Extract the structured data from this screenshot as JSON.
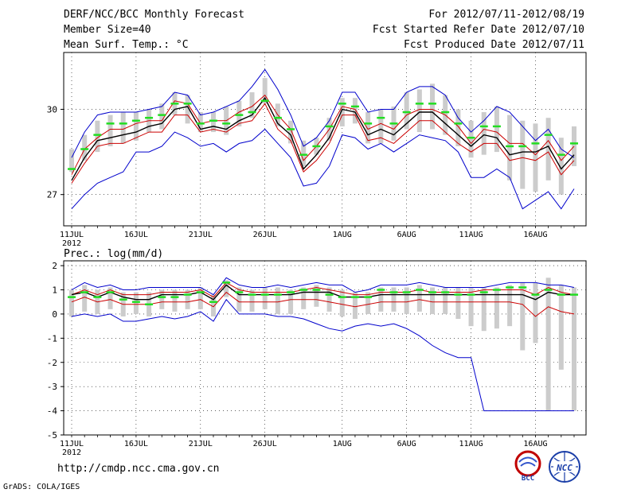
{
  "header": {
    "title": "DERF/NCC/BCC Monthly Forecast",
    "member_size": "Member Size=40",
    "variable": "Mean Surf. Temp.: °C",
    "period": "For 2012/07/11-2012/08/19",
    "start_date": "Fcst Started Refer Date 2012/07/10",
    "produced_date": "Fcst Produced Date 2012/07/11"
  },
  "footer": {
    "url": "http://cmdp.ncc.cma.gov.cn",
    "credit": "GrADS: COLA/IGES",
    "logo_bcc": "BCC",
    "logo_ncc": "NCC"
  },
  "colors": {
    "max_min": "#0000cc",
    "black": "#000000",
    "red": "#cc0000",
    "green": "#22dd22",
    "spread": "#cccccc"
  },
  "chart_data": [
    {
      "type": "line",
      "title": "Mean Surf. Temp.: °C",
      "x_tick_labels": [
        "11JUL",
        "16JUL",
        "21JUL",
        "26JUL",
        "1AUG",
        "6AUG",
        "11AUG",
        "16AUG"
      ],
      "x_tick_index": [
        0,
        5,
        10,
        15,
        21,
        26,
        31,
        36
      ],
      "year_label": "2012",
      "ylim": [
        25.9,
        32.0
      ],
      "yticks": [
        27,
        30
      ],
      "n_days": 40,
      "series": [
        {
          "name": "max",
          "color": "#0000cc",
          "values": [
            28.3,
            29.2,
            29.8,
            29.9,
            29.9,
            29.9,
            30.0,
            30.1,
            30.6,
            30.5,
            29.8,
            29.9,
            30.1,
            30.3,
            30.8,
            31.4,
            30.7,
            29.8,
            28.7,
            29.0,
            29.6,
            30.6,
            30.6,
            29.9,
            30.0,
            30.0,
            30.6,
            30.8,
            30.8,
            30.5,
            29.7,
            29.2,
            29.6,
            30.1,
            29.9,
            29.4,
            28.9,
            29.3,
            28.6,
            28.3
          ]
        },
        {
          "name": "upper",
          "color": "#cc0000",
          "values": [
            27.7,
            28.6,
            29.0,
            29.3,
            29.3,
            29.5,
            29.6,
            29.6,
            30.3,
            30.2,
            29.5,
            29.6,
            29.6,
            29.9,
            30.1,
            30.5,
            29.8,
            29.3,
            28.2,
            28.7,
            29.3,
            30.1,
            30.0,
            29.3,
            29.5,
            29.3,
            29.8,
            30.0,
            30.0,
            29.8,
            29.4,
            28.8,
            29.3,
            29.2,
            28.8,
            28.8,
            28.4,
            28.9,
            28.2,
            28.7
          ]
        },
        {
          "name": "ensemble_mean",
          "color": "#000000",
          "values": [
            27.5,
            28.3,
            28.9,
            29.0,
            29.1,
            29.2,
            29.4,
            29.5,
            30.0,
            30.1,
            29.3,
            29.4,
            29.3,
            29.6,
            29.8,
            30.4,
            29.5,
            29.1,
            27.9,
            28.4,
            29.0,
            30.0,
            29.9,
            29.1,
            29.3,
            29.1,
            29.5,
            29.9,
            29.9,
            29.5,
            29.1,
            28.7,
            29.1,
            29.0,
            28.4,
            28.5,
            28.5,
            28.7,
            27.9,
            28.4
          ]
        },
        {
          "name": "lower",
          "color": "#cc0000",
          "values": [
            27.4,
            28.1,
            28.7,
            28.8,
            28.8,
            29.0,
            29.2,
            29.2,
            29.8,
            29.8,
            29.2,
            29.3,
            29.2,
            29.5,
            29.6,
            30.2,
            29.3,
            28.9,
            27.8,
            28.2,
            28.8,
            29.8,
            29.8,
            28.9,
            29.0,
            28.8,
            29.2,
            29.6,
            29.6,
            29.2,
            28.8,
            28.5,
            28.8,
            28.8,
            28.2,
            28.3,
            28.2,
            28.5,
            27.7,
            28.2
          ]
        },
        {
          "name": "min",
          "color": "#0000cc",
          "values": [
            26.5,
            27.0,
            27.4,
            27.6,
            27.8,
            28.5,
            28.5,
            28.7,
            29.2,
            29.0,
            28.7,
            28.8,
            28.5,
            28.8,
            28.9,
            29.3,
            28.8,
            28.3,
            27.3,
            27.4,
            28.0,
            29.1,
            29.0,
            28.6,
            28.8,
            28.5,
            28.8,
            29.1,
            29.0,
            28.9,
            28.5,
            27.6,
            27.6,
            27.9,
            27.6,
            26.5,
            26.8,
            27.1,
            26.5,
            27.2
          ]
        },
        {
          "name": "single_member",
          "color": "#22dd22",
          "values": [
            27.9,
            28.6,
            29.1,
            29.5,
            29.5,
            29.6,
            29.7,
            29.8,
            30.2,
            30.2,
            29.5,
            29.6,
            29.5,
            29.8,
            29.9,
            30.3,
            29.7,
            29.3,
            28.4,
            28.7,
            29.4,
            30.2,
            30.1,
            29.5,
            29.7,
            29.5,
            29.9,
            30.2,
            30.2,
            29.9,
            29.5,
            29.0,
            29.4,
            29.4,
            28.7,
            28.7,
            28.8,
            29.1,
            28.4,
            28.8
          ]
        }
      ],
      "spread_bars": {
        "name": "ensemble spread",
        "color": "#cccccc",
        "low": [
          27.8,
          28.2,
          28.5,
          28.7,
          28.8,
          28.9,
          29.2,
          29.3,
          29.8,
          29.5,
          29.2,
          29.2,
          29.1,
          29.4,
          29.7,
          30.2,
          29.4,
          28.8,
          28.0,
          28.4,
          28.9,
          29.4,
          29.5,
          28.8,
          28.8,
          28.9,
          29.3,
          29.2,
          29.3,
          29.1,
          28.7,
          28.3,
          28.4,
          28.5,
          27.5,
          27.2,
          27.1,
          27.5,
          27.0,
          28.0
        ],
        "high": [
          28.6,
          29.1,
          29.6,
          29.8,
          29.9,
          29.9,
          30.0,
          30.2,
          30.6,
          30.5,
          29.9,
          29.9,
          30.1,
          30.3,
          30.6,
          31.1,
          30.2,
          29.6,
          28.9,
          29.0,
          29.7,
          30.4,
          30.4,
          29.9,
          30.0,
          30.1,
          30.6,
          30.7,
          30.9,
          30.5,
          30.0,
          29.6,
          29.9,
          30.1,
          29.8,
          29.6,
          29.5,
          29.7,
          29.0,
          29.4
        ]
      }
    },
    {
      "type": "line",
      "title": "Prec.: log(mm/d)",
      "x_tick_labels": [
        "11JUL",
        "16JUL",
        "21JUL",
        "26JUL",
        "1AUG",
        "6AUG",
        "11AUG",
        "16AUG"
      ],
      "x_tick_index": [
        0,
        5,
        10,
        15,
        21,
        26,
        31,
        36
      ],
      "year_label": "2012",
      "ylim": [
        -5,
        2.2
      ],
      "yticks": [
        -5,
        -4,
        -3,
        -2,
        -1,
        0,
        1,
        2
      ],
      "n_days": 40,
      "series": [
        {
          "name": "max",
          "color": "#0000cc",
          "values": [
            1.0,
            1.3,
            1.1,
            1.2,
            1.0,
            1.0,
            1.1,
            1.1,
            1.1,
            1.1,
            1.1,
            0.8,
            1.5,
            1.2,
            1.1,
            1.1,
            1.2,
            1.1,
            1.2,
            1.3,
            1.2,
            1.2,
            0.9,
            1.0,
            1.2,
            1.2,
            1.2,
            1.3,
            1.2,
            1.1,
            1.1,
            1.1,
            1.1,
            1.2,
            1.3,
            1.3,
            1.3,
            1.2,
            1.2,
            1.1
          ]
        },
        {
          "name": "upper",
          "color": "#cc0000",
          "values": [
            0.8,
            1.0,
            0.8,
            1.0,
            0.8,
            0.8,
            0.8,
            0.9,
            0.9,
            0.9,
            1.0,
            0.7,
            1.3,
            1.0,
            0.9,
            0.9,
            0.9,
            0.9,
            1.0,
            1.1,
            1.0,
            0.9,
            0.8,
            0.8,
            0.9,
            0.9,
            0.9,
            1.0,
            0.9,
            0.9,
            0.9,
            0.9,
            1.0,
            1.0,
            1.0,
            1.0,
            0.8,
            1.1,
            0.9,
            0.8
          ]
        },
        {
          "name": "ensemble_mean",
          "color": "#000000",
          "values": [
            0.8,
            0.9,
            0.7,
            0.9,
            0.7,
            0.6,
            0.6,
            0.8,
            0.8,
            0.8,
            0.9,
            0.6,
            1.2,
            0.8,
            0.8,
            0.8,
            0.8,
            0.8,
            0.9,
            0.9,
            0.9,
            0.7,
            0.7,
            0.7,
            0.8,
            0.8,
            0.8,
            0.8,
            0.8,
            0.8,
            0.8,
            0.8,
            0.8,
            0.8,
            0.8,
            0.8,
            0.6,
            0.9,
            0.8,
            0.8
          ]
        },
        {
          "name": "lower",
          "color": "#cc0000",
          "values": [
            0.5,
            0.7,
            0.5,
            0.6,
            0.4,
            0.4,
            0.4,
            0.5,
            0.5,
            0.5,
            0.6,
            0.3,
            0.9,
            0.5,
            0.5,
            0.5,
            0.5,
            0.6,
            0.6,
            0.6,
            0.5,
            0.4,
            0.3,
            0.4,
            0.5,
            0.5,
            0.5,
            0.6,
            0.5,
            0.5,
            0.5,
            0.5,
            0.5,
            0.5,
            0.5,
            0.4,
            -0.1,
            0.3,
            0.1,
            0.0
          ]
        },
        {
          "name": "min",
          "color": "#0000cc",
          "values": [
            -0.1,
            0.0,
            -0.1,
            0.0,
            -0.3,
            -0.3,
            -0.2,
            -0.1,
            -0.2,
            -0.1,
            0.1,
            -0.3,
            0.6,
            0.0,
            0.0,
            0.0,
            -0.1,
            -0.1,
            -0.2,
            -0.4,
            -0.6,
            -0.7,
            -0.5,
            -0.4,
            -0.5,
            -0.4,
            -0.6,
            -0.9,
            -1.3,
            -1.6,
            -1.8,
            -1.8,
            -4.0,
            -4.0,
            -4.0,
            -4.0,
            -4.0,
            -4.0,
            -4.0,
            -4.0
          ]
        },
        {
          "name": "single_member",
          "color": "#22dd22",
          "values": [
            0.7,
            0.9,
            0.7,
            0.9,
            0.6,
            0.5,
            0.4,
            0.7,
            0.7,
            0.8,
            0.9,
            0.5,
            1.3,
            0.9,
            0.8,
            0.8,
            0.8,
            0.9,
            1.0,
            1.0,
            0.8,
            0.7,
            0.7,
            0.7,
            1.0,
            0.9,
            0.9,
            1.0,
            0.9,
            0.9,
            0.8,
            0.8,
            0.9,
            1.0,
            1.1,
            1.1,
            0.8,
            1.0,
            0.8,
            0.8
          ]
        }
      ],
      "spread_bars": {
        "name": "ensemble spread",
        "color": "#cccccc",
        "low": [
          -0.1,
          0.1,
          0.0,
          0.2,
          -0.1,
          0.0,
          -0.1,
          0.2,
          0.1,
          0.2,
          0.2,
          -0.1,
          0.7,
          0.1,
          0.1,
          0.2,
          0.0,
          0.0,
          0.2,
          0.3,
          0.1,
          -0.1,
          -0.2,
          0.0,
          0.1,
          0.1,
          0.0,
          0.1,
          0.0,
          0.0,
          -0.2,
          -0.5,
          -0.7,
          -0.6,
          -0.5,
          -1.5,
          -1.2,
          -4.0,
          -2.3,
          -4.0
        ],
        "high": [
          1.0,
          1.2,
          1.0,
          1.1,
          0.9,
          0.9,
          0.9,
          1.0,
          1.0,
          1.0,
          1.1,
          0.8,
          1.4,
          1.1,
          1.0,
          1.1,
          1.1,
          1.0,
          1.1,
          1.2,
          1.1,
          1.0,
          0.9,
          0.9,
          1.1,
          1.1,
          1.1,
          1.2,
          1.1,
          1.1,
          1.1,
          1.1,
          1.1,
          1.1,
          1.2,
          1.3,
          1.3,
          1.5,
          1.2,
          1.1
        ]
      }
    }
  ]
}
